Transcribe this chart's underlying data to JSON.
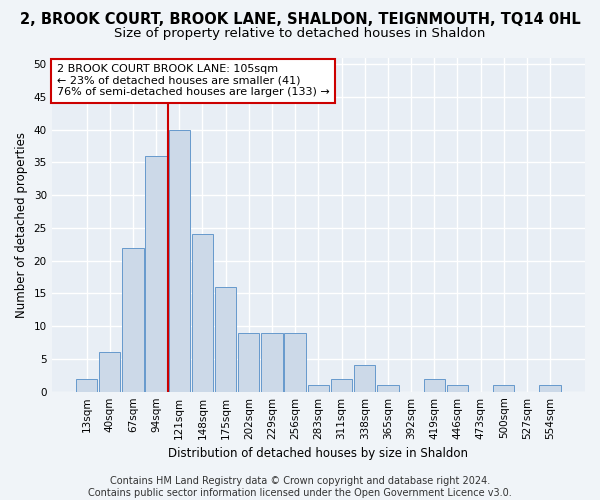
{
  "title": "2, BROOK COURT, BROOK LANE, SHALDON, TEIGNMOUTH, TQ14 0HL",
  "subtitle": "Size of property relative to detached houses in Shaldon",
  "xlabel": "Distribution of detached houses by size in Shaldon",
  "ylabel": "Number of detached properties",
  "bar_color": "#ccd9e8",
  "bar_edge_color": "#6699cc",
  "bin_labels": [
    "13sqm",
    "40sqm",
    "67sqm",
    "94sqm",
    "121sqm",
    "148sqm",
    "175sqm",
    "202sqm",
    "229sqm",
    "256sqm",
    "283sqm",
    "311sqm",
    "338sqm",
    "365sqm",
    "392sqm",
    "419sqm",
    "446sqm",
    "473sqm",
    "500sqm",
    "527sqm",
    "554sqm"
  ],
  "bar_values": [
    2,
    6,
    22,
    36,
    40,
    24,
    16,
    9,
    9,
    9,
    1,
    2,
    4,
    1,
    0,
    2,
    1,
    0,
    1,
    0,
    1
  ],
  "vline_pos": 3.5,
  "vline_color": "#cc0000",
  "ylim": [
    0,
    51
  ],
  "yticks": [
    0,
    5,
    10,
    15,
    20,
    25,
    30,
    35,
    40,
    45,
    50
  ],
  "annotation_text": "2 BROOK COURT BROOK LANE: 105sqm\n← 23% of detached houses are smaller (41)\n76% of semi-detached houses are larger (133) →",
  "annotation_box_color": "#ffffff",
  "annotation_box_edge": "#cc0000",
  "footer_text": "Contains HM Land Registry data © Crown copyright and database right 2024.\nContains public sector information licensed under the Open Government Licence v3.0.",
  "bg_color": "#f0f4f8",
  "plot_bg_color": "#e8eef5",
  "grid_color": "#ffffff",
  "title_fontsize": 10.5,
  "subtitle_fontsize": 9.5,
  "axis_label_fontsize": 8.5,
  "tick_fontsize": 7.5,
  "annotation_fontsize": 8,
  "footer_fontsize": 7
}
